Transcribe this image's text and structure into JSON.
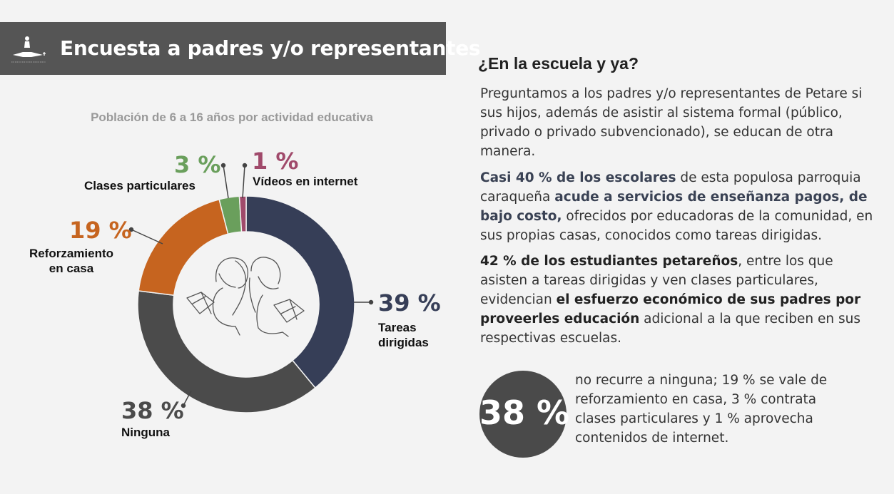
{
  "header": {
    "title": "Encuesta a padres y/o representantes"
  },
  "chart_data": {
    "type": "pie",
    "title": "Población de 6 a 16 años por actividad educativa",
    "slices": [
      {
        "label": "Tareas dirigidas",
        "value": 39,
        "value_label": "39 %",
        "color": "#363e57"
      },
      {
        "label": "Ninguna",
        "value": 38,
        "value_label": "38 %",
        "color": "#4b4b4b"
      },
      {
        "label": "Reforzamiento en casa",
        "value": 19,
        "value_label": "19 %",
        "color": "#c6641f"
      },
      {
        "label": "Clases particulares",
        "value": 3,
        "value_label": "3 %",
        "color": "#6a9f5c"
      },
      {
        "label": "Vídeos en internet",
        "value": 1,
        "value_label": "1 %",
        "color": "#a04a6b"
      }
    ],
    "labels": {
      "tareas_line1": "Tareas",
      "tareas_line2": "dirigidas",
      "ninguna": "Ninguna",
      "reforzamiento_line1": "Reforzamiento",
      "reforzamiento_line2": "en casa",
      "clases": "Clases particulares",
      "videos": "Vídeos en internet"
    },
    "center_icon": "children-reading-illustration"
  },
  "right": {
    "title": "¿En la escuela y ya?",
    "p1": "Preguntamos a los padres y/o representantes de Petare si sus hijos, además de asistir al sistema formal (público, privado o privado subvencionado), se educan de otra manera.",
    "p2_bold1": "Casi 40 % de los escolares",
    "p2_text1": " de esta populosa parroquia caraqueña ",
    "p2_bold2": "acude a servicios de enseñanza pagos, de bajo costo,",
    "p2_text2": " ofrecidos por educadoras de la comunidad, en sus propias casas, conocidos como tareas dirigidas.",
    "p3_bold1": "42 % de los estudiantes petareños",
    "p3_text1": ", entre los que asisten a tareas dirigidas y ven clases particulares, evidencian ",
    "p3_bold2": "el esfuerzo económico de sus padres por proveerles educación",
    "p3_text2": " adicional a la que reciben en sus respectivas escuelas.",
    "highlight_value": "38 %",
    "highlight_text": "no recurre a ninguna; 19 % se vale de reforzamiento en casa, 3 % contrata clases particulares y 1 % aprovecha contenidos de internet."
  }
}
